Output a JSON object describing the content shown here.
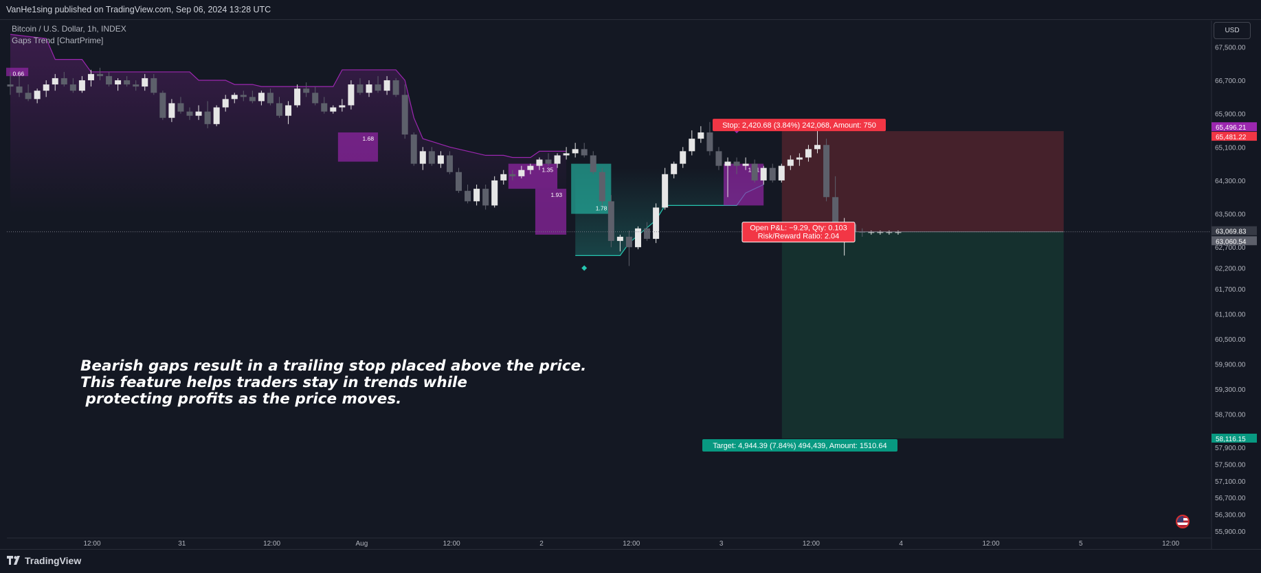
{
  "header": {
    "published": "VanHe1sing published on TradingView.com, Sep 06, 2024 13:28 UTC"
  },
  "legend": {
    "symbol": "Bitcoin / U.S. Dollar, 1h, INDEX",
    "indicator": "Gaps Trend [ChartPrime]"
  },
  "currency_button": "USD",
  "annotation": {
    "line1": "Bearish gaps result in a trailing stop placed above the price.",
    "line2": "This feature helps traders stay in trends while",
    "line3": " protecting profits as the price moves."
  },
  "colors": {
    "background": "#141823",
    "bull_candle": "#e6e6e6",
    "bear_candle": "#5d606b",
    "bear_gap": "#9c27b0",
    "bull_gap": "#26c6b0",
    "stop_zone": "#45212b",
    "target_zone": "#15302e",
    "stop_label": "#f23645",
    "target_label": "#089981"
  },
  "price_axis": {
    "ticks": [
      "67,500.00",
      "66,700.00",
      "65,900.00",
      "65,100.00",
      "64,300.00",
      "63,500.00",
      "62,700.00",
      "62,200.00",
      "61,700.00",
      "61,100.00",
      "60,500.00",
      "59,900.00",
      "59,300.00",
      "58,700.00",
      "57,900.00",
      "57,500.00",
      "57,100.00",
      "56,700.00",
      "56,300.00",
      "55,900.00"
    ],
    "tick_values": [
      67500,
      66700,
      65900,
      65100,
      64300,
      63500,
      62700,
      62200,
      61700,
      61100,
      60500,
      59900,
      59300,
      58700,
      57900,
      57500,
      57100,
      56700,
      56300,
      55900
    ]
  },
  "time_axis": {
    "labels": [
      "12:00",
      "31",
      "12:00",
      "Aug",
      "12:00",
      "2",
      "12:00",
      "3",
      "12:00",
      "4",
      "12:00",
      "5",
      "12:00"
    ]
  },
  "price_labels": {
    "indicator_level": "65,496.21",
    "stop_price": "65,481.22",
    "entry_price": "63,069.83",
    "last_price": "63,060.54",
    "target_price": "58,116.15"
  },
  "position": {
    "stop_text": "Stop: 2,420.68 (3.84%) 242,068, Amount: 750",
    "target_text": "Target: 4,944.39 (7.84%) 494,439, Amount: 1510.64",
    "pnl_text": "Open P&L: −9.29, Qty: 0.103",
    "rr_text": "Risk/Reward Ratio: 2.04"
  },
  "footer": {
    "logo_text": "TradingView"
  },
  "chart_data": {
    "type": "candlestick",
    "title": "Bitcoin / U.S. Dollar, 1h, INDEX",
    "xlabel": "",
    "ylabel": "",
    "ylim": [
      55600,
      67900
    ],
    "bar_count": 100,
    "time_labels": [
      "12:00",
      "31",
      "12:00",
      "Aug",
      "12:00",
      "2",
      "12:00",
      "3",
      "12:00",
      "4",
      "12:00",
      "5",
      "12:00"
    ],
    "time_label_bar_index": [
      11,
      23,
      35,
      47,
      59,
      71,
      83,
      95,
      107,
      119,
      131,
      143,
      155
    ],
    "candles": [
      [
        66600,
        66900,
        66350,
        66550
      ],
      [
        66550,
        66800,
        66300,
        66400
      ],
      [
        66400,
        66600,
        66200,
        66250
      ],
      [
        66250,
        66500,
        66150,
        66450
      ],
      [
        66450,
        66700,
        66300,
        66600
      ],
      [
        66600,
        66850,
        66450,
        66750
      ],
      [
        66750,
        66900,
        66550,
        66600
      ],
      [
        66600,
        66750,
        66400,
        66450
      ],
      [
        66450,
        66800,
        66400,
        66700
      ],
      [
        66700,
        66950,
        66550,
        66850
      ],
      [
        66850,
        67000,
        66700,
        66800
      ],
      [
        66800,
        66900,
        66550,
        66600
      ],
      [
        66600,
        66750,
        66450,
        66700
      ],
      [
        66700,
        66800,
        66550,
        66600
      ],
      [
        66600,
        66700,
        66450,
        66550
      ],
      [
        66550,
        66850,
        66450,
        66750
      ],
      [
        66750,
        66850,
        66350,
        66400
      ],
      [
        66400,
        66450,
        65750,
        65800
      ],
      [
        65800,
        66250,
        65700,
        66150
      ],
      [
        66150,
        66300,
        65900,
        65950
      ],
      [
        65950,
        66050,
        65750,
        65850
      ],
      [
        65850,
        66100,
        65750,
        65950
      ],
      [
        65950,
        66200,
        65550,
        65650
      ],
      [
        65650,
        66100,
        65600,
        66050
      ],
      [
        66050,
        66350,
        65950,
        66250
      ],
      [
        66250,
        66400,
        66150,
        66350
      ],
      [
        66350,
        66450,
        66200,
        66300
      ],
      [
        66300,
        66450,
        66150,
        66200
      ],
      [
        66200,
        66450,
        66100,
        66400
      ],
      [
        66400,
        66500,
        66100,
        66150
      ],
      [
        66150,
        66300,
        65800,
        65850
      ],
      [
        65850,
        66200,
        65650,
        66100
      ],
      [
        66100,
        66600,
        66050,
        66500
      ],
      [
        66500,
        66650,
        66300,
        66400
      ],
      [
        66400,
        66550,
        66100,
        66150
      ],
      [
        66150,
        66300,
        65900,
        65950
      ],
      [
        65950,
        66100,
        65900,
        66050
      ],
      [
        66050,
        66250,
        65950,
        66100
      ],
      [
        66100,
        66700,
        66000,
        66600
      ],
      [
        66600,
        66750,
        66350,
        66400
      ],
      [
        66400,
        66700,
        66300,
        66600
      ],
      [
        66600,
        66800,
        66400,
        66450
      ],
      [
        66450,
        66800,
        66350,
        66700
      ],
      [
        66700,
        66750,
        66300,
        66350
      ],
      [
        66350,
        66600,
        65300,
        65400
      ],
      [
        65400,
        65450,
        64650,
        64700
      ],
      [
        64700,
        65100,
        64550,
        65000
      ],
      [
        65000,
        65100,
        64650,
        64700
      ],
      [
        64700,
        65000,
        64600,
        64900
      ],
      [
        64900,
        65000,
        64450,
        64500
      ],
      [
        64500,
        64600,
        64000,
        64050
      ],
      [
        64050,
        64200,
        63750,
        63800
      ],
      [
        63800,
        64200,
        63700,
        64100
      ],
      [
        64100,
        64200,
        63600,
        63700
      ],
      [
        63700,
        64400,
        63650,
        64300
      ],
      [
        64300,
        64550,
        64200,
        64450
      ],
      [
        64450,
        64550,
        64300,
        64400
      ],
      [
        64400,
        64650,
        64350,
        64550
      ],
      [
        64550,
        64700,
        64450,
        64650
      ],
      [
        64650,
        64850,
        64550,
        64800
      ],
      [
        64800,
        64950,
        64650,
        64700
      ],
      [
        64700,
        64950,
        64600,
        64900
      ],
      [
        64900,
        65100,
        64800,
        64950
      ],
      [
        64950,
        65200,
        64850,
        65050
      ],
      [
        65050,
        65200,
        64850,
        64900
      ],
      [
        64900,
        65000,
        64450,
        64500
      ],
      [
        64500,
        64600,
        63700,
        63800
      ],
      [
        63800,
        63950,
        62700,
        62850
      ],
      [
        62850,
        63000,
        62600,
        62950
      ],
      [
        62950,
        63100,
        62250,
        62700
      ],
      [
        62700,
        63200,
        62650,
        63150
      ],
      [
        63150,
        63300,
        62850,
        62900
      ],
      [
        62900,
        63750,
        62800,
        63650
      ],
      [
        63650,
        64600,
        63600,
        64450
      ],
      [
        64450,
        64750,
        64350,
        64700
      ],
      [
        64700,
        65100,
        64600,
        65000
      ],
      [
        65000,
        65500,
        64900,
        65300
      ],
      [
        65300,
        65600,
        65200,
        65450
      ],
      [
        65450,
        65700,
        64900,
        65000
      ],
      [
        65000,
        65100,
        64550,
        64650
      ],
      [
        64650,
        64850,
        63900,
        64750
      ],
      [
        64750,
        64850,
        64450,
        64650
      ],
      [
        64650,
        64850,
        64550,
        64700
      ],
      [
        64700,
        64800,
        64250,
        64300
      ],
      [
        64300,
        64650,
        64200,
        64600
      ],
      [
        64600,
        64700,
        64250,
        64300
      ],
      [
        64300,
        64700,
        64250,
        64650
      ],
      [
        64650,
        64900,
        64550,
        64800
      ],
      [
        64800,
        64950,
        64650,
        64850
      ],
      [
        64850,
        65150,
        64750,
        65050
      ],
      [
        65050,
        65550,
        64950,
        65150
      ],
      [
        65150,
        65300,
        63800,
        63900
      ],
      [
        63900,
        64400,
        62850,
        63100
      ],
      [
        63100,
        63400,
        62500,
        63250
      ],
      [
        63250,
        63300,
        63000,
        63065
      ],
      [
        63065,
        63150,
        62950,
        63060
      ],
      [
        63060,
        63100,
        63000,
        63060
      ],
      [
        63060,
        63100,
        63000,
        63060
      ],
      [
        63060,
        63100,
        63000,
        63060
      ],
      [
        63060,
        63100,
        63000,
        63060
      ]
    ],
    "trailing_stop_bear": [
      [
        0,
        67800
      ],
      [
        4,
        67700
      ],
      [
        5,
        67200
      ],
      [
        6,
        67200
      ],
      [
        8,
        67200
      ],
      [
        9,
        66900
      ],
      [
        10,
        66900
      ],
      [
        20,
        66900
      ],
      [
        21,
        66700
      ],
      [
        24,
        66700
      ],
      [
        25,
        66600
      ],
      [
        27,
        66600
      ],
      [
        28,
        66550
      ],
      [
        36,
        66550
      ],
      [
        37,
        66950
      ],
      [
        40,
        66950
      ],
      [
        41,
        66950
      ],
      [
        43,
        66950
      ],
      [
        44,
        66700
      ],
      [
        45,
        65800
      ],
      [
        46,
        65300
      ],
      [
        49,
        65100
      ],
      [
        53,
        64900
      ],
      [
        55,
        64900
      ],
      [
        56,
        64850
      ],
      [
        58,
        64850
      ],
      [
        59,
        65000
      ],
      [
        62,
        65000
      ]
    ],
    "trailing_stop_bull": [
      [
        63,
        62500
      ],
      [
        68,
        62500
      ],
      [
        69,
        62800
      ],
      [
        72,
        63350
      ],
      [
        73,
        63700
      ],
      [
        80,
        63700
      ],
      [
        81,
        63700
      ],
      [
        82,
        64000
      ],
      [
        84,
        64200
      ]
    ],
    "bear_gaps": [
      {
        "from": 37,
        "to": 41,
        "top": 65450,
        "bottom": 64750,
        "label": "1.68"
      },
      {
        "from": 56,
        "to": 61,
        "top": 64700,
        "bottom": 64100,
        "label": "1.35"
      },
      {
        "from": 59,
        "to": 62,
        "top": 64100,
        "bottom": 63000,
        "label": "1.93"
      },
      {
        "from": 80,
        "to": 84,
        "top": 64700,
        "bottom": 63700,
        "label": "1.81"
      },
      {
        "from": 0,
        "to": 2,
        "top": 67000,
        "bottom": 66800,
        "label": "0.66"
      }
    ],
    "bull_gaps": [
      {
        "from": 63,
        "to": 67,
        "top": 64700,
        "bottom": 63500,
        "label": "1.78"
      }
    ],
    "signal_markers": [
      {
        "bar": 81,
        "price": 65496,
        "type": "bear"
      },
      {
        "bar": 64,
        "price": 62200,
        "type": "bull"
      }
    ],
    "position_tool": {
      "start_bar": 86,
      "end_bar": 117,
      "stop": 65481.22,
      "entry": 63069.83,
      "target": 58116.15
    }
  }
}
